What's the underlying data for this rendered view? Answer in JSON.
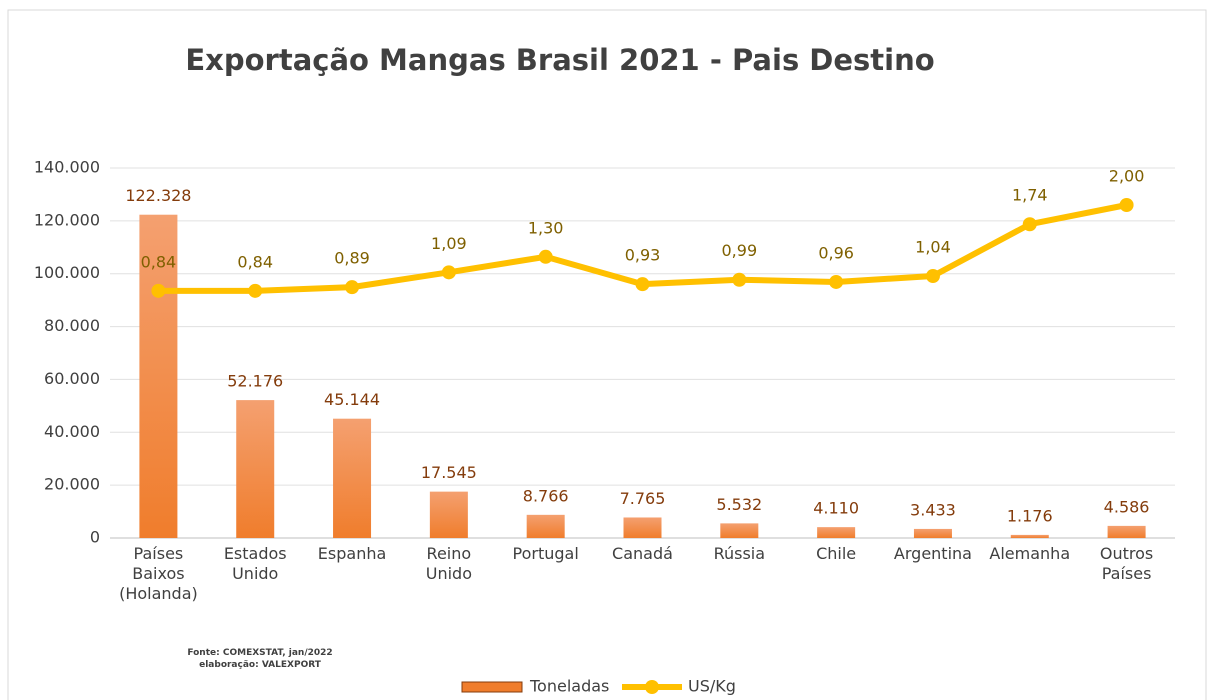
{
  "chart_data": {
    "type": "bar-line",
    "title": "Exportação Mangas Brasil 2021 - Pais Destino",
    "categories": [
      "Países Baixos (Holanda)",
      "Estados Unido",
      "Espanha",
      "Reino Unido",
      "Portugal",
      "Canadá",
      "Rússia",
      "Chile",
      "Argentina",
      "Alemanha",
      "Outros Países"
    ],
    "series": [
      {
        "name": "Toneladas",
        "color": "#f07d2c",
        "type": "bar",
        "values": [
          122328,
          52176,
          45144,
          17545,
          8766,
          7765,
          5532,
          4110,
          3433,
          1176,
          4586
        ],
        "value_labels": [
          "122.328",
          "52.176",
          "45.144",
          "17.545",
          "8.766",
          "7.765",
          "5.532",
          "4.110",
          "3.433",
          "1.176",
          "4.586"
        ]
      },
      {
        "name": "US/Kg",
        "color": "#ffc000",
        "type": "line",
        "axis": "y2",
        "values": [
          0.84,
          0.84,
          0.89,
          1.09,
          1.3,
          0.93,
          0.99,
          0.96,
          1.04,
          1.74,
          2.0
        ],
        "value_labels": [
          "0,84",
          "0,84",
          "0,89",
          "1,09",
          "1,30",
          "0,93",
          "0,99",
          "0,96",
          "1,04",
          "1,74",
          "2,00"
        ]
      }
    ],
    "ylim": [
      0,
      140000
    ],
    "yticks": [
      0,
      {
        "value": 20000,
        "label": "20.000"
      },
      {
        "value": 40000,
        "label": "40.000"
      },
      {
        "value": 60000,
        "label": "60.000"
      },
      {
        "value": 80000,
        "label": "80.000"
      },
      {
        "value": 100000,
        "label": "100.000"
      },
      {
        "value": 120000,
        "label": "120.000"
      },
      {
        "value": 140000,
        "label": "140.000"
      }
    ],
    "y2lim": [
      -2.5,
      2.5
    ],
    "grid": true,
    "legend": "bottom",
    "notes": [
      "Fonte: COMEXSTAT, jan/2022",
      "elaboração: VALEXPORT"
    ]
  }
}
